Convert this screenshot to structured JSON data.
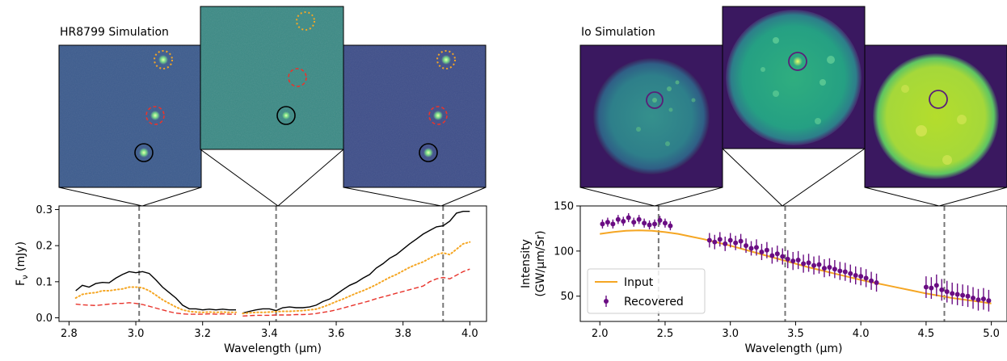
{
  "panels": {
    "left_title": "HR8799 Simulation",
    "right_title": "Io Simulation"
  },
  "chart_data": [
    {
      "type": "line",
      "title": "",
      "xlabel": "Wavelength (μm)",
      "ylabel": "F_ν (mJy)",
      "xlim": [
        2.77,
        4.05
      ],
      "ylim": [
        -0.01,
        0.31
      ],
      "xticks": [
        2.8,
        3.0,
        3.2,
        3.4,
        3.6,
        3.8,
        4.0
      ],
      "xtick_labels": [
        "2.8",
        "3.0",
        "3.2",
        "3.4",
        "3.6",
        "3.8",
        "4.0"
      ],
      "yticks": [
        0.0,
        0.1,
        0.2,
        0.3
      ],
      "ytick_labels": [
        "0.0",
        "0.1",
        "0.2",
        "0.3"
      ],
      "grid": false,
      "vlines": [
        3.01,
        3.42,
        3.92
      ],
      "series": [
        {
          "style": "solid",
          "color": "#000000",
          "segments": [
            [
              [
                2.82,
                0.075
              ],
              [
                2.84,
                0.09
              ],
              [
                2.86,
                0.085
              ],
              [
                2.88,
                0.095
              ],
              [
                2.9,
                0.098
              ],
              [
                2.92,
                0.097
              ],
              [
                2.94,
                0.11
              ],
              [
                2.96,
                0.12
              ],
              [
                2.98,
                0.128
              ],
              [
                3.0,
                0.125
              ],
              [
                3.02,
                0.128
              ],
              [
                3.04,
                0.123
              ],
              [
                3.06,
                0.105
              ],
              [
                3.08,
                0.085
              ],
              [
                3.1,
                0.07
              ],
              [
                3.12,
                0.055
              ],
              [
                3.14,
                0.035
              ],
              [
                3.16,
                0.025
              ],
              [
                3.18,
                0.025
              ],
              [
                3.2,
                0.022
              ],
              [
                3.22,
                0.024
              ],
              [
                3.24,
                0.022
              ],
              [
                3.26,
                0.024
              ],
              [
                3.28,
                0.022
              ],
              [
                3.3,
                0.022
              ]
            ],
            [
              [
                3.32,
                0.013
              ],
              [
                3.34,
                0.018
              ],
              [
                3.36,
                0.022
              ],
              [
                3.38,
                0.025
              ],
              [
                3.4,
                0.025
              ],
              [
                3.42,
                0.02
              ],
              [
                3.44,
                0.028
              ],
              [
                3.46,
                0.03
              ],
              [
                3.48,
                0.028
              ],
              [
                3.5,
                0.028
              ],
              [
                3.52,
                0.03
              ],
              [
                3.54,
                0.035
              ],
              [
                3.56,
                0.045
              ],
              [
                3.58,
                0.052
              ],
              [
                3.6,
                0.065
              ],
              [
                3.62,
                0.078
              ],
              [
                3.64,
                0.09
              ],
              [
                3.66,
                0.098
              ],
              [
                3.68,
                0.11
              ],
              [
                3.7,
                0.12
              ],
              [
                3.72,
                0.138
              ],
              [
                3.74,
                0.15
              ],
              [
                3.76,
                0.165
              ],
              [
                3.78,
                0.175
              ],
              [
                3.8,
                0.19
              ],
              [
                3.82,
                0.205
              ],
              [
                3.84,
                0.218
              ],
              [
                3.86,
                0.232
              ],
              [
                3.88,
                0.242
              ],
              [
                3.9,
                0.252
              ],
              [
                3.92,
                0.255
              ],
              [
                3.94,
                0.268
              ],
              [
                3.96,
                0.29
              ],
              [
                3.98,
                0.295
              ],
              [
                4.0,
                0.295
              ]
            ]
          ]
        },
        {
          "style": "dotted",
          "color": "#f5a623",
          "segments": [
            [
              [
                2.82,
                0.055
              ],
              [
                2.84,
                0.065
              ],
              [
                2.86,
                0.068
              ],
              [
                2.88,
                0.07
              ],
              [
                2.9,
                0.075
              ],
              [
                2.92,
                0.075
              ],
              [
                2.94,
                0.078
              ],
              [
                2.96,
                0.08
              ],
              [
                2.98,
                0.085
              ],
              [
                3.0,
                0.085
              ],
              [
                3.02,
                0.083
              ],
              [
                3.04,
                0.075
              ],
              [
                3.06,
                0.063
              ],
              [
                3.08,
                0.05
              ],
              [
                3.1,
                0.04
              ],
              [
                3.12,
                0.03
              ],
              [
                3.14,
                0.022
              ],
              [
                3.16,
                0.018
              ],
              [
                3.18,
                0.016
              ],
              [
                3.2,
                0.015
              ],
              [
                3.22,
                0.016
              ],
              [
                3.24,
                0.015
              ],
              [
                3.26,
                0.016
              ],
              [
                3.28,
                0.015
              ],
              [
                3.3,
                0.015
              ]
            ],
            [
              [
                3.32,
                0.012
              ],
              [
                3.34,
                0.014
              ],
              [
                3.36,
                0.015
              ],
              [
                3.38,
                0.015
              ],
              [
                3.4,
                0.016
              ],
              [
                3.42,
                0.017
              ],
              [
                3.44,
                0.018
              ],
              [
                3.46,
                0.018
              ],
              [
                3.48,
                0.019
              ],
              [
                3.5,
                0.02
              ],
              [
                3.52,
                0.022
              ],
              [
                3.54,
                0.024
              ],
              [
                3.56,
                0.03
              ],
              [
                3.58,
                0.037
              ],
              [
                3.6,
                0.045
              ],
              [
                3.62,
                0.052
              ],
              [
                3.64,
                0.06
              ],
              [
                3.66,
                0.068
              ],
              [
                3.68,
                0.075
              ],
              [
                3.7,
                0.083
              ],
              [
                3.72,
                0.092
              ],
              [
                3.74,
                0.102
              ],
              [
                3.76,
                0.112
              ],
              [
                3.78,
                0.12
              ],
              [
                3.8,
                0.13
              ],
              [
                3.82,
                0.14
              ],
              [
                3.84,
                0.148
              ],
              [
                3.86,
                0.155
              ],
              [
                3.88,
                0.165
              ],
              [
                3.9,
                0.175
              ],
              [
                3.92,
                0.18
              ],
              [
                3.94,
                0.175
              ],
              [
                3.96,
                0.19
              ],
              [
                3.98,
                0.205
              ],
              [
                4.0,
                0.21
              ]
            ]
          ]
        },
        {
          "style": "dashed",
          "color": "#e8342c",
          "segments": [
            [
              [
                2.82,
                0.038
              ],
              [
                2.84,
                0.036
              ],
              [
                2.86,
                0.035
              ],
              [
                2.88,
                0.034
              ],
              [
                2.9,
                0.036
              ],
              [
                2.92,
                0.038
              ],
              [
                2.94,
                0.04
              ],
              [
                2.96,
                0.04
              ],
              [
                2.98,
                0.042
              ],
              [
                3.0,
                0.04
              ],
              [
                3.02,
                0.037
              ],
              [
                3.04,
                0.032
              ],
              [
                3.06,
                0.027
              ],
              [
                3.08,
                0.022
              ],
              [
                3.1,
                0.017
              ],
              [
                3.12,
                0.013
              ],
              [
                3.14,
                0.011
              ],
              [
                3.16,
                0.01
              ],
              [
                3.18,
                0.01
              ],
              [
                3.2,
                0.01
              ],
              [
                3.22,
                0.011
              ],
              [
                3.24,
                0.01
              ],
              [
                3.26,
                0.011
              ],
              [
                3.28,
                0.01
              ],
              [
                3.3,
                0.01
              ]
            ],
            [
              [
                3.32,
                0.005
              ],
              [
                3.34,
                0.006
              ],
              [
                3.36,
                0.007
              ],
              [
                3.38,
                0.007
              ],
              [
                3.4,
                0.007
              ],
              [
                3.42,
                0.008
              ],
              [
                3.44,
                0.008
              ],
              [
                3.46,
                0.008
              ],
              [
                3.48,
                0.009
              ],
              [
                3.5,
                0.009
              ],
              [
                3.52,
                0.01
              ],
              [
                3.54,
                0.012
              ],
              [
                3.56,
                0.015
              ],
              [
                3.58,
                0.018
              ],
              [
                3.6,
                0.022
              ],
              [
                3.62,
                0.027
              ],
              [
                3.64,
                0.032
              ],
              [
                3.66,
                0.037
              ],
              [
                3.68,
                0.042
              ],
              [
                3.7,
                0.047
              ],
              [
                3.72,
                0.053
              ],
              [
                3.74,
                0.058
              ],
              [
                3.76,
                0.063
              ],
              [
                3.78,
                0.068
              ],
              [
                3.8,
                0.073
              ],
              [
                3.82,
                0.078
              ],
              [
                3.84,
                0.083
              ],
              [
                3.86,
                0.088
              ],
              [
                3.88,
                0.1
              ],
              [
                3.9,
                0.108
              ],
              [
                3.92,
                0.112
              ],
              [
                3.94,
                0.108
              ],
              [
                3.96,
                0.118
              ],
              [
                3.98,
                0.128
              ],
              [
                4.0,
                0.135
              ]
            ]
          ]
        }
      ]
    },
    {
      "type": "scatter",
      "title": "",
      "xlabel": "Wavelength (μm)",
      "ylabel": "Intensity\n(GW/μm/Sr)",
      "xlim": [
        1.85,
        5.12
      ],
      "ylim": [
        22,
        150
      ],
      "xticks": [
        2.0,
        2.5,
        3.0,
        3.5,
        4.0,
        4.5,
        5.0
      ],
      "xtick_labels": [
        "2.0",
        "2.5",
        "3.0",
        "3.5",
        "4.0",
        "4.5",
        "5.0"
      ],
      "yticks": [
        50,
        100,
        150
      ],
      "ytick_labels": [
        "50",
        "100",
        "150"
      ],
      "grid": false,
      "legend": "lower-left",
      "vlines": [
        2.45,
        3.42,
        4.64
      ],
      "input": {
        "name": "Input",
        "color": "#f5a623",
        "x": [
          2.0,
          2.1,
          2.2,
          2.3,
          2.4,
          2.5,
          2.6,
          2.7,
          2.8,
          2.9,
          3.0,
          3.1,
          3.2,
          3.3,
          3.4,
          3.5,
          3.6,
          3.7,
          3.8,
          3.9,
          4.0,
          4.1,
          4.2,
          4.3,
          4.4,
          4.5,
          4.6,
          4.7,
          4.8,
          4.9,
          5.0
        ],
        "y": [
          119,
          121,
          122.5,
          123,
          122.5,
          121,
          119,
          116,
          113,
          109.5,
          106,
          102,
          98,
          94,
          90,
          86,
          82,
          78.5,
          75,
          71.5,
          68,
          65,
          62,
          59,
          56,
          53,
          50.5,
          48,
          46,
          44,
          42
        ]
      },
      "recovered": {
        "name": "Recovered",
        "color": "#6a0d83",
        "x": [
          2.02,
          2.06,
          2.1,
          2.14,
          2.18,
          2.22,
          2.26,
          2.3,
          2.34,
          2.38,
          2.42,
          2.46,
          2.5,
          2.54,
          2.84,
          2.88,
          2.92,
          2.96,
          3.0,
          3.04,
          3.08,
          3.12,
          3.16,
          3.2,
          3.24,
          3.28,
          3.32,
          3.36,
          3.4,
          3.44,
          3.48,
          3.52,
          3.56,
          3.6,
          3.64,
          3.68,
          3.72,
          3.76,
          3.8,
          3.84,
          3.88,
          3.92,
          3.96,
          4.0,
          4.04,
          4.08,
          4.12,
          4.5,
          4.54,
          4.58,
          4.62,
          4.66,
          4.7,
          4.74,
          4.78,
          4.82,
          4.86,
          4.9,
          4.94,
          4.98
        ],
        "y": [
          130,
          132,
          130,
          135,
          133,
          137,
          132,
          135,
          131,
          129,
          130,
          134,
          131,
          128,
          112,
          110,
          113,
          108,
          112,
          109,
          111,
          106,
          103,
          104,
          99,
          101,
          95,
          97,
          94,
          91,
          89,
          90,
          86,
          87,
          84,
          85,
          81,
          82,
          80,
          78,
          77,
          75,
          73,
          72,
          70,
          67,
          65,
          60,
          59,
          62,
          57,
          55,
          53,
          52,
          51,
          50,
          48,
          46,
          47,
          45
        ],
        "err": [
          5,
          5,
          5,
          5,
          5,
          5,
          5,
          5,
          5,
          5,
          5,
          5,
          5,
          5,
          8,
          8,
          8,
          8,
          8,
          8,
          8,
          8,
          8,
          9,
          9,
          9,
          9,
          9,
          9,
          10,
          10,
          10,
          10,
          10,
          10,
          10,
          10,
          10,
          10,
          10,
          10,
          10,
          10,
          10,
          10,
          10,
          10,
          12,
          12,
          12,
          12,
          12,
          12,
          12,
          12,
          12,
          12,
          12,
          12,
          12
        ]
      }
    }
  ]
}
